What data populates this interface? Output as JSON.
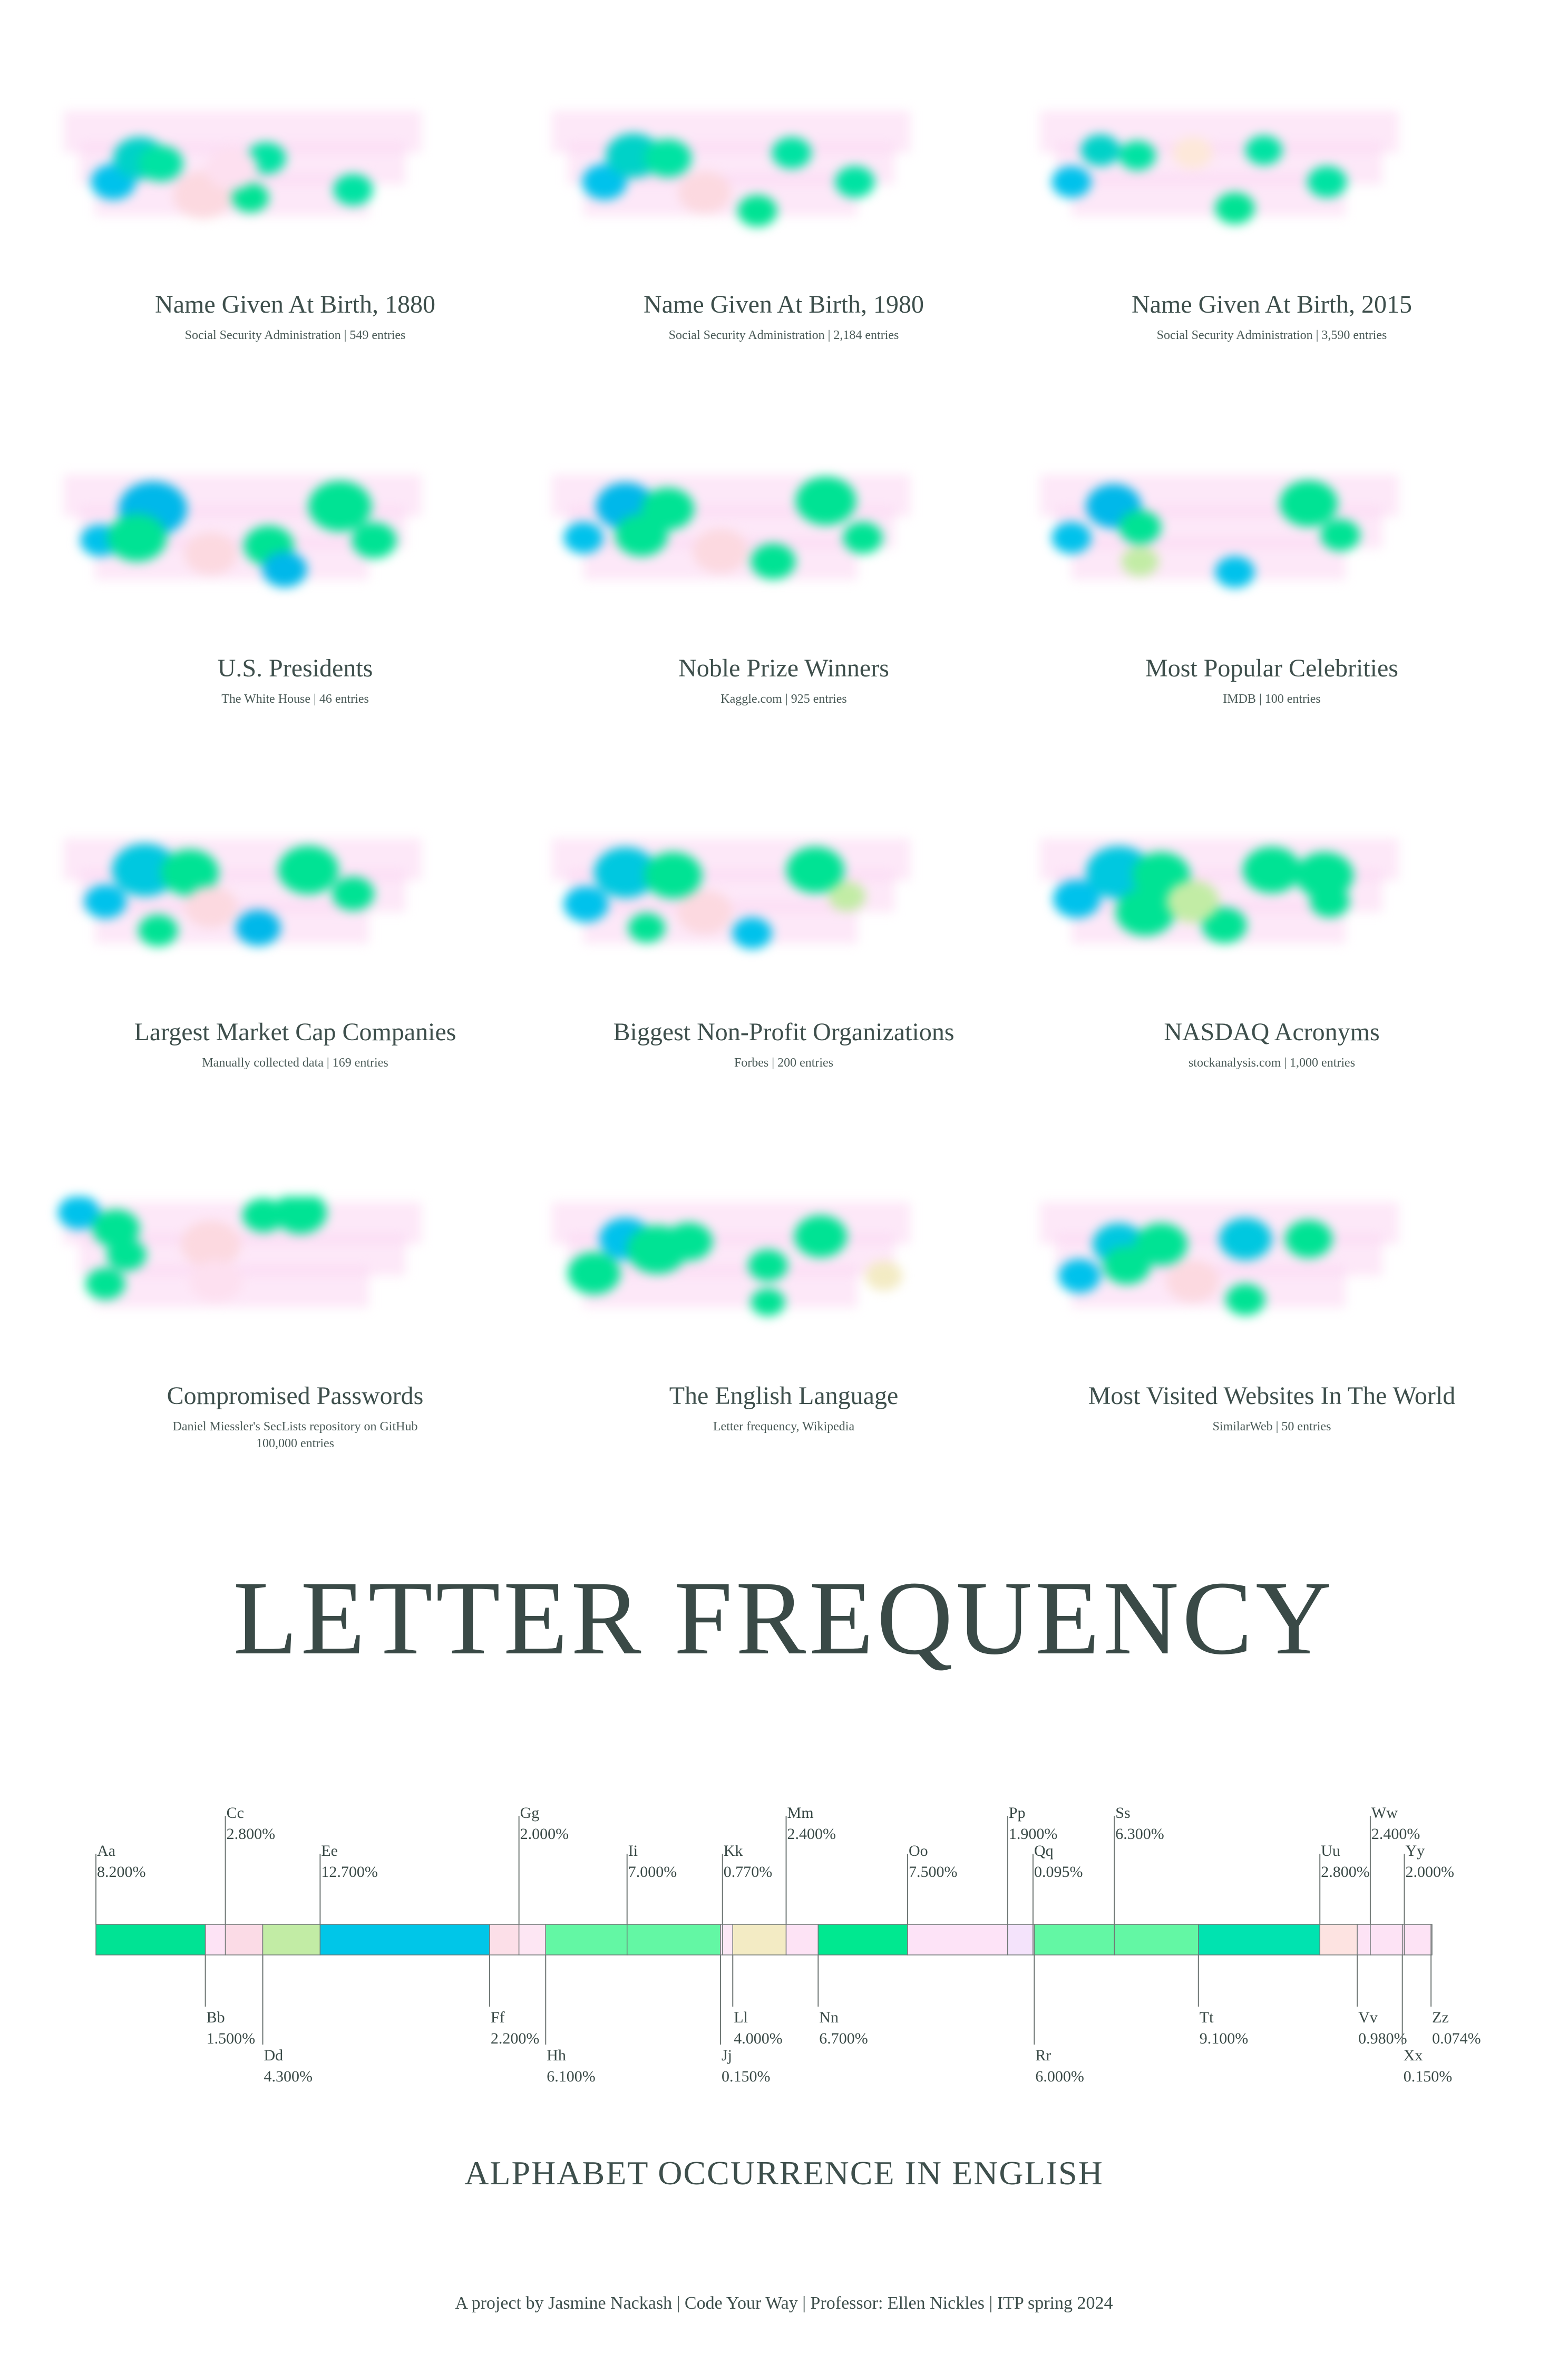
{
  "cards": [
    {
      "title": "Name Given At Birth, 1880",
      "source": "Social Security Administration | 549 entries"
    },
    {
      "title": "Name Given At Birth, 1980",
      "source": "Social Security Administration | 2,184 entries"
    },
    {
      "title": "Name Given At Birth, 2015",
      "source": "Social Security Administration | 3,590 entries"
    },
    {
      "title": "U.S. Presidents",
      "source": "The White House | 46 entries"
    },
    {
      "title": "Noble Prize Winners",
      "source": "Kaggle.com | 925 entries"
    },
    {
      "title": "Most Popular Celebrities",
      "source": "IMDB | 100 entries"
    },
    {
      "title": "Largest Market Cap Companies",
      "source": "Manually collected data | 169 entries"
    },
    {
      "title": "Biggest Non-Profit Organizations",
      "source": "Forbes | 200 entries"
    },
    {
      "title": "NASDAQ Acronyms",
      "source": "stockanalysis.com | 1,000 entries"
    },
    {
      "title": "Compromised Passwords",
      "source": "Daniel Miessler's SecLists repository on GitHub",
      "source2": "100,000 entries"
    },
    {
      "title": "The English Language",
      "source": "Letter frequency, Wikipedia"
    },
    {
      "title": "Most Visited Websites In The World",
      "source": "SimilarWeb | 50 entries"
    }
  ],
  "main_title": "LETTER FREQUENCY",
  "subtitle": "ALPHABET OCCURRENCE IN ENGLISH",
  "credits": "A project by Jasmine Nackash | Code Your Way | Professor: Ellen Nickles | ITP spring 2024",
  "colors": {
    "text": "#3a4a47",
    "bar_outline": "#6f7775",
    "heat_pink": "#fbd6f3",
    "heat_teal": "#00e3b3",
    "heat_blue": "#00c2ec"
  },
  "chart_data": {
    "type": "bar",
    "orientation": "stacked-horizontal",
    "unit": "%",
    "categories": [
      "Aa",
      "Bb",
      "Cc",
      "Dd",
      "Ee",
      "Ff",
      "Gg",
      "Hh",
      "Ii",
      "Jj",
      "Kk",
      "Ll",
      "Mm",
      "Nn",
      "Oo",
      "Pp",
      "Qq",
      "Rr",
      "Ss",
      "Tt",
      "Uu",
      "Vv",
      "Ww",
      "Xx",
      "Yy",
      "Zz"
    ],
    "values": [
      8.2,
      1.5,
      2.8,
      4.3,
      12.7,
      2.2,
      2.0,
      6.1,
      7.0,
      0.15,
      0.77,
      4.0,
      2.4,
      6.7,
      7.5,
      1.9,
      0.095,
      6.0,
      6.3,
      9.1,
      2.8,
      0.98,
      2.4,
      0.15,
      2.0,
      0.074
    ],
    "value_labels": [
      "8.200%",
      "1.500%",
      "2.800%",
      "4.300%",
      "12.700%",
      "2.200%",
      "2.000%",
      "6.100%",
      "7.000%",
      "0.150%",
      "0.770%",
      "4.000%",
      "2.400%",
      "6.700%",
      "7.500%",
      "1.900%",
      "0.095%",
      "6.000%",
      "6.300%",
      "9.100%",
      "2.800%",
      "0.980%",
      "2.400%",
      "0.150%",
      "2.000%",
      "0.074%"
    ],
    "label_side": [
      "above",
      "below",
      "above",
      "below",
      "above",
      "below",
      "above",
      "below",
      "above",
      "below",
      "above",
      "below",
      "above",
      "below",
      "above",
      "above",
      "above",
      "below",
      "above",
      "below",
      "above",
      "below",
      "above",
      "below",
      "above",
      "below"
    ],
    "label_tier": [
      1,
      1,
      2,
      2,
      1,
      1,
      2,
      2,
      1,
      2,
      1,
      1,
      2,
      1,
      1,
      2,
      1,
      2,
      2,
      1,
      1,
      1,
      2,
      2,
      1,
      1
    ],
    "colors": [
      "#00e394",
      "#fde3f5",
      "#fbdbe6",
      "#c2eca5",
      "#00c6e8",
      "#fcdfe8",
      "#fde6f3",
      "#63f7a4",
      "#63f7a4",
      "#fde6f4",
      "#fce8f6",
      "#f3ebc4",
      "#fde3f5",
      "#00e890",
      "#fde3f7",
      "#f4e3fb",
      "#fde3f5",
      "#63f7a4",
      "#63f7a4",
      "#00e3b0",
      "#fde3e1",
      "#fde3f5",
      "#fde3f5",
      "#fde3f5",
      "#fde3f5",
      "#fde3f5"
    ]
  }
}
